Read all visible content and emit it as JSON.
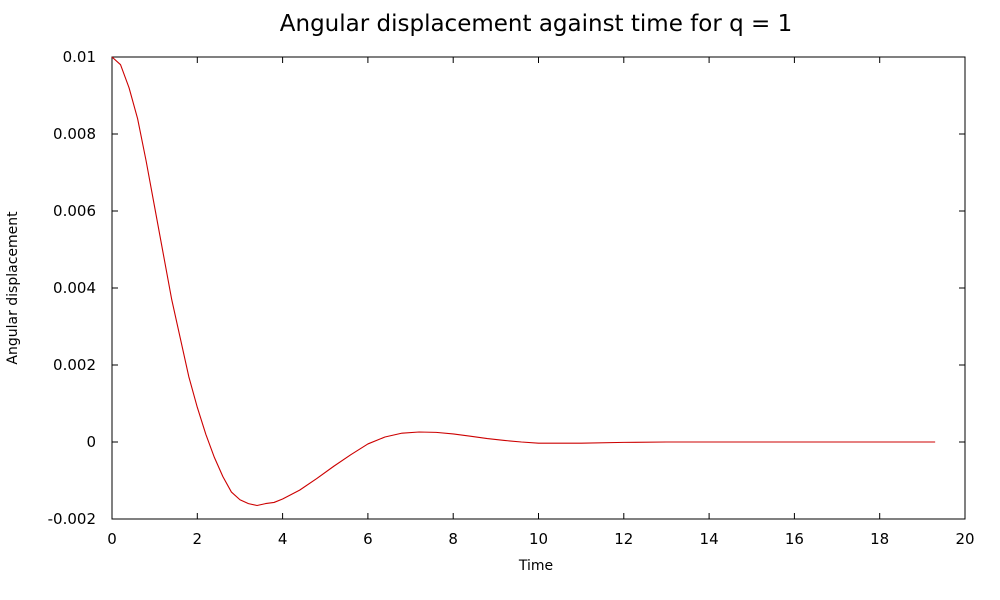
{
  "chart_data": {
    "type": "line",
    "title": "Angular displacement against time for q = 1",
    "xlabel": "Time",
    "ylabel": "Angular displacement",
    "xlim": [
      0,
      20
    ],
    "ylim": [
      -0.002,
      0.01
    ],
    "x_ticks": [
      "0",
      "2",
      "4",
      "6",
      "8",
      "10",
      "12",
      "14",
      "16",
      "18",
      "20"
    ],
    "y_ticks": [
      "-0.002",
      "0",
      "0.002",
      "0.004",
      "0.006",
      "0.008",
      "0.01"
    ],
    "grid": false,
    "series": [
      {
        "color": "#cc0000",
        "x": [
          0,
          0.2,
          0.4,
          0.6,
          0.8,
          1.0,
          1.2,
          1.4,
          1.6,
          1.8,
          2.0,
          2.2,
          2.4,
          2.6,
          2.8,
          3.0,
          3.2,
          3.4,
          3.6,
          3.8,
          4.0,
          4.4,
          4.8,
          5.2,
          5.6,
          6.0,
          6.4,
          6.8,
          7.2,
          7.6,
          8.0,
          8.4,
          8.8,
          9.2,
          9.6,
          10.0,
          11.0,
          12.0,
          13.0,
          14.0,
          15.0,
          16.0,
          17.0,
          18.0,
          19.3
        ],
        "y": [
          0.01,
          0.0098,
          0.0092,
          0.0084,
          0.0073,
          0.0061,
          0.0049,
          0.0037,
          0.0027,
          0.0017,
          0.0009,
          0.0002,
          -0.0004,
          -0.0009,
          -0.0013,
          -0.0015,
          -0.0016,
          -0.00165,
          -0.0016,
          -0.00157,
          -0.00148,
          -0.00125,
          -0.00095,
          -0.00063,
          -0.00033,
          -5e-05,
          0.00013,
          0.00023,
          0.00026,
          0.00025,
          0.00021,
          0.00015,
          9e-05,
          4e-05,
          0.0,
          -3e-05,
          -3e-05,
          -1e-05,
          0.0,
          0.0,
          0.0,
          0.0,
          0.0,
          0.0,
          0.0
        ]
      }
    ]
  }
}
